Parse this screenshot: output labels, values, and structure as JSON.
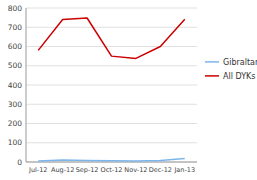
{
  "chart_data": {
    "type": "line",
    "categories": [
      "Jul-12",
      "Aug-12",
      "Sep-12",
      "Oct-12",
      "Nov-12",
      "Dec-12",
      "Jan-13"
    ],
    "series": [
      {
        "name": "Gibraltar",
        "color": "#7cb5ec",
        "values": [
          5,
          10,
          8,
          6,
          5,
          8,
          18
        ]
      },
      {
        "name": "All DYKs",
        "color": "#cc0000",
        "values": [
          580,
          740,
          748,
          550,
          538,
          600,
          742
        ]
      }
    ],
    "ylim": [
      0,
      800
    ],
    "yticks": [
      0,
      100,
      200,
      300,
      400,
      500,
      600,
      700,
      800
    ],
    "grid": true,
    "legend": "right"
  }
}
